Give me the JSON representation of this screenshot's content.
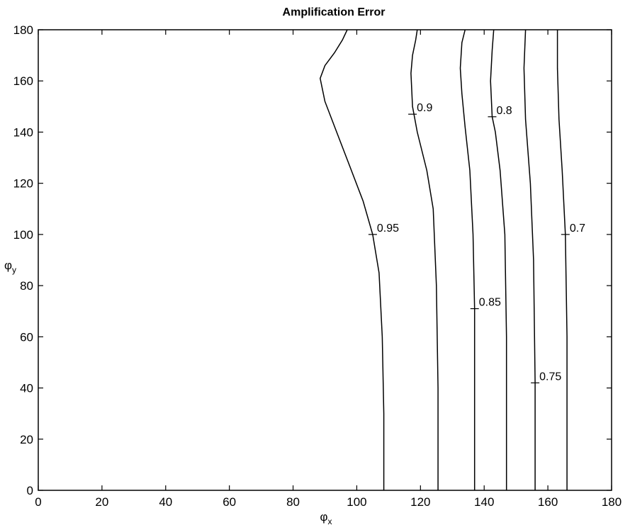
{
  "chart_data": {
    "type": "contour",
    "title": "Amplification Error",
    "xlabel_base": "φ",
    "xlabel_sub": "x",
    "ylabel_base": "φ",
    "ylabel_sub": "y",
    "xlim": [
      0,
      180
    ],
    "ylim": [
      0,
      180
    ],
    "xticks": [
      0,
      20,
      40,
      60,
      80,
      100,
      120,
      140,
      160,
      180
    ],
    "yticks": [
      0,
      20,
      40,
      60,
      80,
      100,
      120,
      140,
      160,
      180
    ],
    "grid": false,
    "line_color": "#000000",
    "contours": [
      {
        "level": "0.95",
        "points": [
          [
            108.5,
            0
          ],
          [
            108.5,
            30
          ],
          [
            108,
            60
          ],
          [
            107,
            85
          ],
          [
            105,
            100
          ],
          [
            102,
            113
          ],
          [
            98,
            126
          ],
          [
            94,
            139
          ],
          [
            90,
            152
          ],
          [
            88.5,
            161
          ],
          [
            90,
            166
          ],
          [
            93,
            171
          ],
          [
            95.5,
            176
          ],
          [
            97,
            180
          ]
        ],
        "label_at": [
          105,
          100
        ]
      },
      {
        "level": "0.9",
        "points": [
          [
            125.5,
            0
          ],
          [
            125.5,
            40
          ],
          [
            125,
            80
          ],
          [
            124,
            110
          ],
          [
            122,
            125
          ],
          [
            119,
            140
          ],
          [
            117.5,
            150
          ],
          [
            117,
            163
          ],
          [
            117.5,
            170
          ],
          [
            118.5,
            176
          ],
          [
            119,
            180
          ]
        ],
        "label_at": [
          117.5,
          147
        ]
      },
      {
        "level": "0.85",
        "points": [
          [
            137,
            0
          ],
          [
            137,
            71
          ],
          [
            136.5,
            100
          ],
          [
            135.5,
            125
          ],
          [
            134,
            142
          ],
          [
            133,
            155
          ],
          [
            132.5,
            165
          ],
          [
            133,
            175
          ],
          [
            134,
            180
          ]
        ],
        "label_at": [
          137,
          71
        ]
      },
      {
        "level": "0.8",
        "points": [
          [
            147,
            0
          ],
          [
            147,
            60
          ],
          [
            146.5,
            100
          ],
          [
            145,
            125
          ],
          [
            143.5,
            140
          ],
          [
            142.5,
            146
          ],
          [
            142,
            160
          ],
          [
            142.5,
            172
          ],
          [
            143,
            180
          ]
        ],
        "label_at": [
          142.5,
          146
        ]
      },
      {
        "level": "0.75",
        "points": [
          [
            156,
            0
          ],
          [
            156,
            42
          ],
          [
            155.5,
            90
          ],
          [
            154.5,
            120
          ],
          [
            153,
            145
          ],
          [
            152.5,
            165
          ],
          [
            153,
            180
          ]
        ],
        "label_at": [
          156,
          42
        ]
      },
      {
        "level": "0.7",
        "points": [
          [
            166,
            0
          ],
          [
            166,
            60
          ],
          [
            165.5,
            100
          ],
          [
            164.5,
            125
          ],
          [
            163.5,
            145
          ],
          [
            163,
            165
          ],
          [
            163,
            180
          ]
        ],
        "label_at": [
          165.5,
          100
        ]
      }
    ]
  }
}
